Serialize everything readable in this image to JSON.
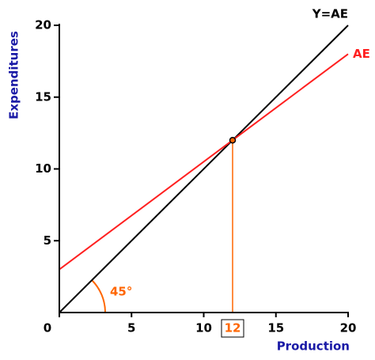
{
  "chart_data": {
    "type": "line",
    "x_label": "Production",
    "y_label": "Expenditures",
    "xlim": [
      0,
      20
    ],
    "ylim": [
      0,
      20
    ],
    "xticks": [
      0,
      5,
      10,
      15,
      20
    ],
    "yticks": [
      5,
      10,
      15,
      20
    ],
    "series": [
      {
        "name": "Y=AE",
        "color": "#000000",
        "x": [
          0,
          20
        ],
        "values": [
          0,
          20
        ]
      },
      {
        "name": "AE",
        "color": "#ff2020",
        "x": [
          0,
          20
        ],
        "values": [
          3,
          18
        ]
      }
    ],
    "equilibrium": {
      "x": 12,
      "y": 12,
      "color": "#ff6600"
    },
    "angle_label": "45°",
    "axis_label_color": "#1a1aa6"
  }
}
